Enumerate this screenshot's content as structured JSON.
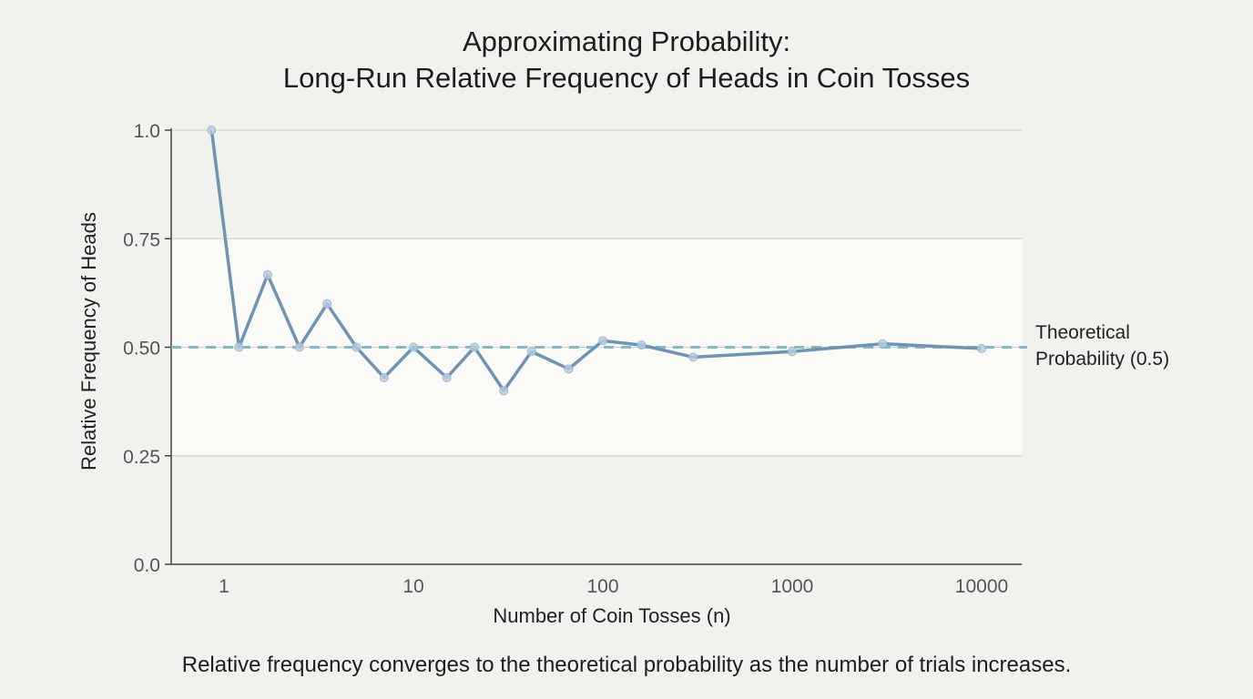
{
  "chart_data": {
    "type": "line",
    "title": [
      "Approximating Probability:",
      "Long-Run Relative Frequency of Heads in Coin Tosses"
    ],
    "xlabel": "Number of Coin Tosses (n)",
    "ylabel": "Relative Frequency of Heads",
    "x_scale": "log",
    "x_ticks": [
      1,
      10,
      100,
      1000,
      10000
    ],
    "x_tick_labels": [
      "1",
      "10",
      "100",
      "1000",
      "10000"
    ],
    "y_ticks": [
      0.0,
      0.25,
      0.5,
      0.75,
      1.0
    ],
    "y_tick_labels": [
      "0.0",
      "0.25",
      "0.50",
      "0.75",
      "1.0"
    ],
    "ylim": [
      0,
      1.0
    ],
    "grid": "horizontal",
    "shaded_band": [
      0.25,
      0.75
    ],
    "series": [
      {
        "x": [
          0.86,
          1.2,
          1.7,
          2.5,
          3.5,
          5,
          7,
          10,
          15,
          21,
          30,
          42,
          66,
          100,
          160,
          300,
          1000,
          3000,
          10000
        ],
        "y": [
          1.0,
          0.5,
          0.667,
          0.5,
          0.6,
          0.5,
          0.43,
          0.5,
          0.43,
          0.5,
          0.4,
          0.49,
          0.45,
          0.515,
          0.505,
          0.477,
          0.49,
          0.508,
          0.497
        ],
        "color": "#6f93b3"
      }
    ],
    "reference_line": {
      "y": 0.5,
      "label": [
        "Theoretical",
        "Probability (0.5)"
      ],
      "color": "#86b8cc",
      "style": "dashed"
    },
    "caption": "Relative frequency converges to the theoretical probability as the number of trials increases."
  },
  "colors": {
    "background": "#f1f1ed",
    "band": "#fafaf6",
    "grid": "#d6d6d2",
    "axis": "#444444"
  }
}
